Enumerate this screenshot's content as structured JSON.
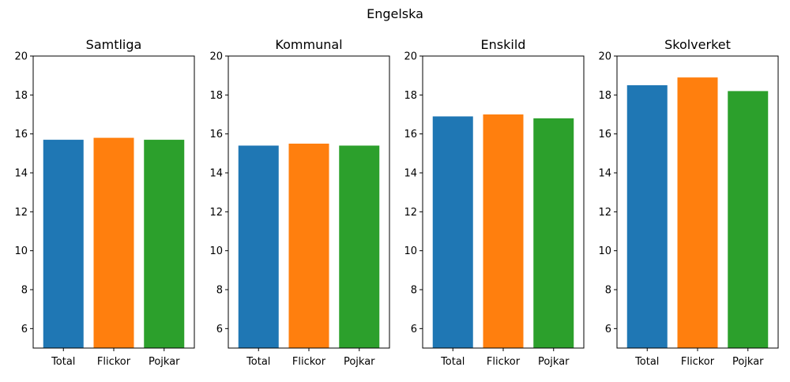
{
  "figure": {
    "title": "Engelska"
  },
  "colors": {
    "Total": "#1f77b4",
    "Flickor": "#ff7f0e",
    "Pojkar": "#2ca02c"
  },
  "chart_data": [
    {
      "type": "bar",
      "title": "Samtliga",
      "categories": [
        "Total",
        "Flickor",
        "Pojkar"
      ],
      "values": [
        15.7,
        15.8,
        15.7
      ],
      "ylim": [
        5,
        20
      ],
      "yticks": [
        6,
        8,
        10,
        12,
        14,
        16,
        18,
        20
      ]
    },
    {
      "type": "bar",
      "title": "Kommunal",
      "categories": [
        "Total",
        "Flickor",
        "Pojkar"
      ],
      "values": [
        15.4,
        15.5,
        15.4
      ],
      "ylim": [
        5,
        20
      ],
      "yticks": [
        6,
        8,
        10,
        12,
        14,
        16,
        18,
        20
      ]
    },
    {
      "type": "bar",
      "title": "Enskild",
      "categories": [
        "Total",
        "Flickor",
        "Pojkar"
      ],
      "values": [
        16.9,
        17.0,
        16.8
      ],
      "ylim": [
        5,
        20
      ],
      "yticks": [
        6,
        8,
        10,
        12,
        14,
        16,
        18,
        20
      ]
    },
    {
      "type": "bar",
      "title": "Skolverket",
      "categories": [
        "Total",
        "Flickor",
        "Pojkar"
      ],
      "values": [
        18.5,
        18.9,
        18.2
      ],
      "ylim": [
        5,
        20
      ],
      "yticks": [
        6,
        8,
        10,
        12,
        14,
        16,
        18,
        20
      ]
    }
  ]
}
